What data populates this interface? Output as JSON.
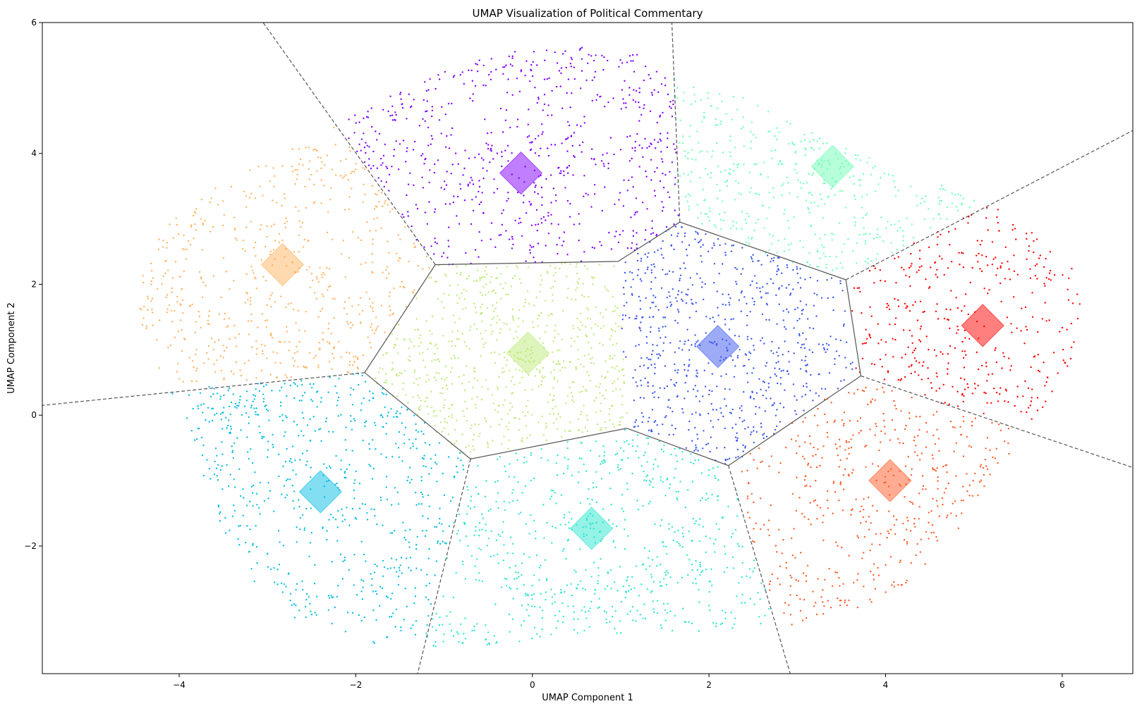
{
  "chart_data": {
    "type": "scatter",
    "title": "UMAP Visualization of Political Commentary",
    "xlabel": "UMAP Component 1",
    "ylabel": "UMAP Component 2",
    "xlim": [
      -5.55,
      6.8
    ],
    "ylim": [
      -3.95,
      6.0
    ],
    "xticks": [
      {
        "v": -4,
        "label": "−4"
      },
      {
        "v": -2,
        "label": "−2"
      },
      {
        "v": 0,
        "label": "0"
      },
      {
        "v": 2,
        "label": "2"
      },
      {
        "v": 4,
        "label": "4"
      },
      {
        "v": 6,
        "label": "6"
      }
    ],
    "yticks": [
      {
        "v": -2,
        "label": "−2"
      },
      {
        "v": 0,
        "label": "0"
      },
      {
        "v": 2,
        "label": "2"
      },
      {
        "v": 4,
        "label": "4"
      },
      {
        "v": 6,
        "label": "6"
      }
    ],
    "grid": false,
    "legend": "none",
    "clusters": [
      {
        "color": "#8000ff",
        "centroid": [
          -0.13,
          3.7
        ],
        "n_points": 900
      },
      {
        "color": "#ffb360",
        "centroid": [
          -2.83,
          2.3
        ],
        "n_points": 900
      },
      {
        "color": "#bfe97a",
        "centroid": [
          -0.05,
          0.95
        ],
        "n_points": 1400
      },
      {
        "color": "#3c57ef",
        "centroid": [
          2.1,
          1.05
        ],
        "n_points": 1300
      },
      {
        "color": "#70feb8",
        "centroid": [
          3.4,
          3.8
        ],
        "n_points": 1000
      },
      {
        "color": "#ff0000",
        "centroid": [
          5.1,
          1.37
        ],
        "n_points": 1000
      },
      {
        "color": "#ff5a26",
        "centroid": [
          4.05,
          -1.0
        ],
        "n_points": 800
      },
      {
        "color": "#07bde3",
        "centroid": [
          -2.4,
          -1.17
        ],
        "n_points": 900
      },
      {
        "color": "#2ce6d0",
        "centroid": [
          0.67,
          -1.73
        ],
        "n_points": 800
      }
    ],
    "voronoi_vertices": [
      [
        -1.1,
        2.3
      ],
      [
        0.97,
        2.35
      ],
      [
        1.67,
        2.95
      ],
      [
        3.55,
        2.07
      ],
      [
        3.72,
        0.6
      ],
      [
        2.22,
        -0.77
      ],
      [
        1.07,
        -0.2
      ],
      [
        -0.7,
        -0.67
      ],
      [
        -1.9,
        0.65
      ]
    ],
    "voronoi_rays": [
      [
        [
          -1.1,
          2.3
        ],
        [
          -3.05,
          6.0
        ]
      ],
      [
        [
          1.67,
          2.95
        ],
        [
          1.58,
          6.0
        ]
      ],
      [
        [
          3.55,
          2.07
        ],
        [
          6.8,
          4.35
        ]
      ],
      [
        [
          3.72,
          0.6
        ],
        [
          6.8,
          -0.8
        ]
      ],
      [
        [
          2.22,
          -0.77
        ],
        [
          2.92,
          -3.95
        ]
      ],
      [
        [
          -0.7,
          -0.67
        ],
        [
          -1.3,
          -3.95
        ]
      ],
      [
        [
          -1.9,
          0.65
        ],
        [
          -5.55,
          0.15
        ]
      ]
    ]
  }
}
